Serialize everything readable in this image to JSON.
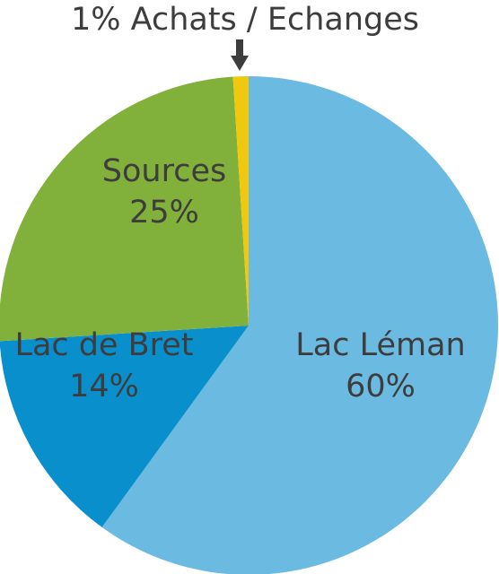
{
  "chart_data": {
    "type": "pie",
    "slices": [
      {
        "name": "Lac Léman",
        "value": 60,
        "label": "60%",
        "color": "#6bbae2"
      },
      {
        "name": "Lac de Bret",
        "value": 14,
        "label": "14%",
        "color": "#0a8fcd"
      },
      {
        "name": "Sources",
        "value": 25,
        "label": "25%",
        "color": "#81b13b"
      },
      {
        "name": "Achats / Echanges",
        "value": 1,
        "label": "1%",
        "color": "#f0c90f"
      }
    ],
    "callout": "1% Achats / Echanges",
    "callout_arrow_color": "#3d3d3d"
  }
}
